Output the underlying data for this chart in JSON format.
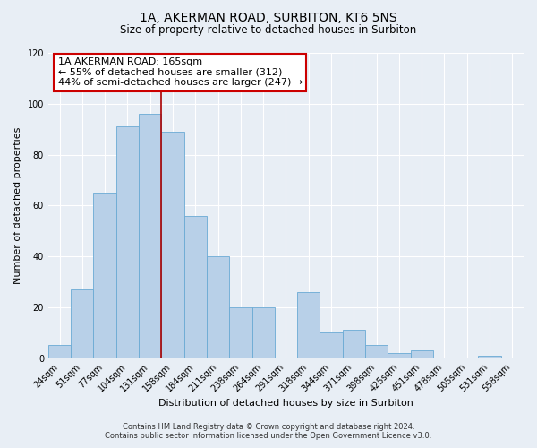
{
  "title": "1A, AKERMAN ROAD, SURBITON, KT6 5NS",
  "subtitle": "Size of property relative to detached houses in Surbiton",
  "xlabel": "Distribution of detached houses by size in Surbiton",
  "ylabel": "Number of detached properties",
  "categories": [
    "24sqm",
    "51sqm",
    "77sqm",
    "104sqm",
    "131sqm",
    "158sqm",
    "184sqm",
    "211sqm",
    "238sqm",
    "264sqm",
    "291sqm",
    "318sqm",
    "344sqm",
    "371sqm",
    "398sqm",
    "425sqm",
    "451sqm",
    "478sqm",
    "505sqm",
    "531sqm",
    "558sqm"
  ],
  "values": [
    5,
    27,
    65,
    91,
    96,
    89,
    56,
    40,
    20,
    20,
    0,
    26,
    10,
    11,
    5,
    2,
    3,
    0,
    0,
    1,
    0
  ],
  "bar_color": "#b8d0e8",
  "bar_edge_color": "#6aaad4",
  "vline_x": 4.5,
  "vline_color": "#aa0000",
  "ylim": [
    0,
    120
  ],
  "yticks": [
    0,
    20,
    40,
    60,
    80,
    100,
    120
  ],
  "annotation_title": "1A AKERMAN ROAD: 165sqm",
  "annotation_line1": "← 55% of detached houses are smaller (312)",
  "annotation_line2": "44% of semi-detached houses are larger (247) →",
  "annotation_box_color": "#ffffff",
  "annotation_box_edge": "#cc0000",
  "footer1": "Contains HM Land Registry data © Crown copyright and database right 2024.",
  "footer2": "Contains public sector information licensed under the Open Government Licence v3.0.",
  "background_color": "#e8eef5",
  "grid_color": "#ffffff",
  "plot_bg_color": "#e8eef5",
  "title_fontsize": 10,
  "subtitle_fontsize": 8.5,
  "tick_fontsize": 7,
  "label_fontsize": 8,
  "annotation_fontsize": 8,
  "footer_fontsize": 6
}
